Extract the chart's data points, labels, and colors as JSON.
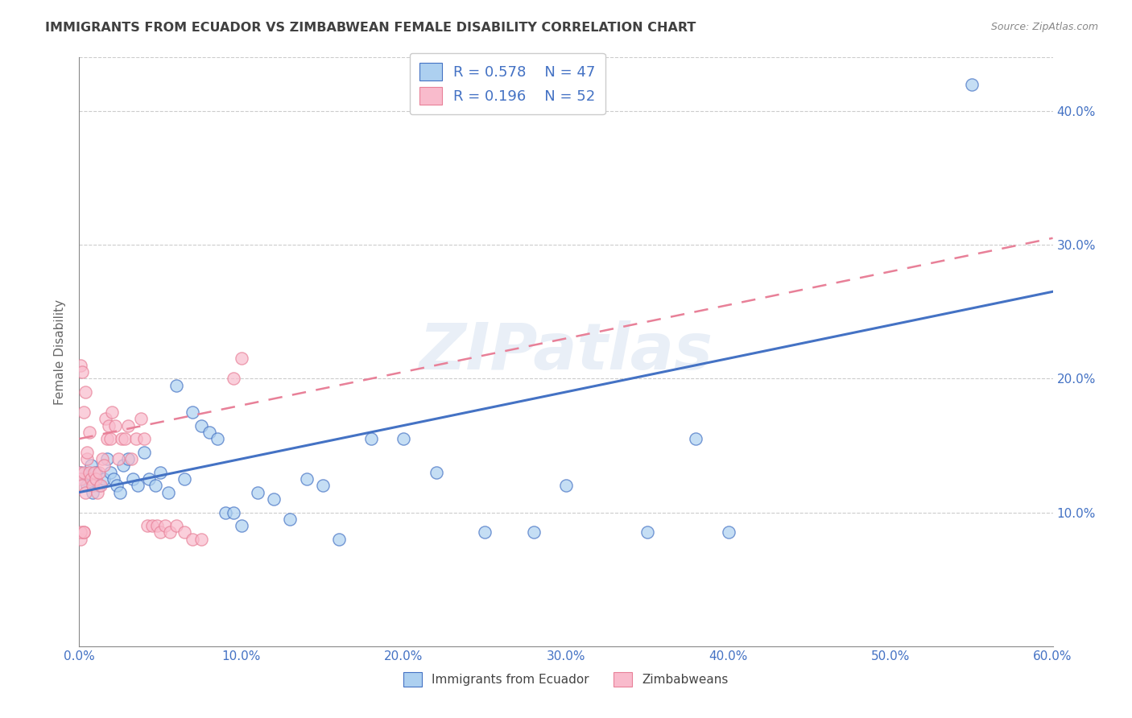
{
  "title": "IMMIGRANTS FROM ECUADOR VS ZIMBABWEAN FEMALE DISABILITY CORRELATION CHART",
  "source": "Source: ZipAtlas.com",
  "ylabel": "Female Disability",
  "legend_label1": "Immigrants from Ecuador",
  "legend_label2": "Zimbabweans",
  "R1": 0.578,
  "N1": 47,
  "R2": 0.196,
  "N2": 52,
  "color1": "#ADD0F0",
  "color2": "#F9BBCC",
  "line_color1": "#4472C4",
  "line_color2": "#E88098",
  "title_color": "#404040",
  "axis_tick_color": "#4472C4",
  "background_color": "#FFFFFF",
  "watermark": "ZIPatlas",
  "xlim": [
    0.0,
    0.6
  ],
  "ylim": [
    0.0,
    0.44
  ],
  "xticks": [
    0.0,
    0.1,
    0.2,
    0.3,
    0.4,
    0.5,
    0.6
  ],
  "yticks": [
    0.1,
    0.2,
    0.3,
    0.4
  ],
  "blue_line_x0": 0.0,
  "blue_line_y0": 0.115,
  "blue_line_x1": 0.6,
  "blue_line_y1": 0.265,
  "pink_line_x0": 0.0,
  "pink_line_y0": 0.155,
  "pink_line_x1": 0.6,
  "pink_line_y1": 0.305,
  "blue_scatter_x": [
    0.001,
    0.003,
    0.005,
    0.007,
    0.008,
    0.01,
    0.012,
    0.015,
    0.017,
    0.019,
    0.021,
    0.023,
    0.025,
    0.027,
    0.03,
    0.033,
    0.036,
    0.04,
    0.043,
    0.047,
    0.05,
    0.055,
    0.06,
    0.065,
    0.07,
    0.075,
    0.08,
    0.085,
    0.09,
    0.095,
    0.1,
    0.11,
    0.12,
    0.13,
    0.14,
    0.15,
    0.16,
    0.18,
    0.2,
    0.22,
    0.25,
    0.28,
    0.3,
    0.35,
    0.38,
    0.4,
    0.55
  ],
  "blue_scatter_y": [
    0.13,
    0.125,
    0.12,
    0.135,
    0.115,
    0.13,
    0.12,
    0.125,
    0.14,
    0.13,
    0.125,
    0.12,
    0.115,
    0.135,
    0.14,
    0.125,
    0.12,
    0.145,
    0.125,
    0.12,
    0.13,
    0.115,
    0.195,
    0.125,
    0.175,
    0.165,
    0.16,
    0.155,
    0.1,
    0.1,
    0.09,
    0.115,
    0.11,
    0.095,
    0.125,
    0.12,
    0.08,
    0.155,
    0.155,
    0.13,
    0.085,
    0.085,
    0.12,
    0.085,
    0.155,
    0.085,
    0.42
  ],
  "pink_scatter_x": [
    0.0,
    0.001,
    0.002,
    0.003,
    0.004,
    0.005,
    0.006,
    0.007,
    0.008,
    0.009,
    0.01,
    0.011,
    0.012,
    0.013,
    0.014,
    0.015,
    0.016,
    0.017,
    0.018,
    0.019,
    0.02,
    0.022,
    0.024,
    0.026,
    0.028,
    0.03,
    0.032,
    0.035,
    0.038,
    0.04,
    0.042,
    0.045,
    0.048,
    0.05,
    0.053,
    0.056,
    0.06,
    0.065,
    0.07,
    0.075,
    0.001,
    0.002,
    0.003,
    0.004,
    0.005,
    0.006,
    0.001,
    0.003,
    0.001,
    0.003,
    0.095,
    0.1
  ],
  "pink_scatter_y": [
    0.13,
    0.125,
    0.12,
    0.13,
    0.115,
    0.14,
    0.13,
    0.125,
    0.12,
    0.13,
    0.125,
    0.115,
    0.13,
    0.12,
    0.14,
    0.135,
    0.17,
    0.155,
    0.165,
    0.155,
    0.175,
    0.165,
    0.14,
    0.155,
    0.155,
    0.165,
    0.14,
    0.155,
    0.17,
    0.155,
    0.09,
    0.09,
    0.09,
    0.085,
    0.09,
    0.085,
    0.09,
    0.085,
    0.08,
    0.08,
    0.21,
    0.205,
    0.175,
    0.19,
    0.145,
    0.16,
    0.08,
    0.085,
    0.085,
    0.085,
    0.2,
    0.215
  ]
}
